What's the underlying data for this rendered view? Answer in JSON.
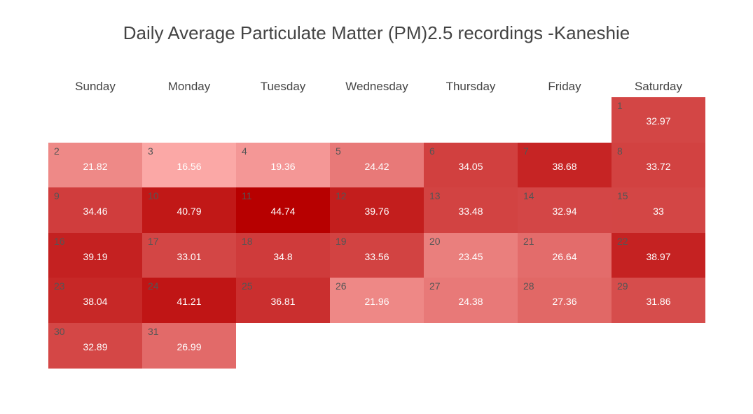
{
  "chart_data": {
    "type": "heatmap",
    "title": "Daily Average Particulate Matter (PM)2.5 recordings -Kaneshie",
    "weekdays": [
      "Sunday",
      "Monday",
      "Tuesday",
      "Wednesday",
      "Thursday",
      "Friday",
      "Saturday"
    ],
    "first_weekday_index": 6,
    "colorscale": {
      "low": "#fba8a6",
      "high": "#b70000",
      "min": 16.56,
      "max": 44.74
    },
    "days": [
      {
        "day": 1,
        "value": 32.97
      },
      {
        "day": 2,
        "value": 21.82
      },
      {
        "day": 3,
        "value": 16.56
      },
      {
        "day": 4,
        "value": 19.36
      },
      {
        "day": 5,
        "value": 24.42
      },
      {
        "day": 6,
        "value": 34.05
      },
      {
        "day": 7,
        "value": 38.68
      },
      {
        "day": 8,
        "value": 33.72
      },
      {
        "day": 9,
        "value": 34.46
      },
      {
        "day": 10,
        "value": 40.79
      },
      {
        "day": 11,
        "value": 44.74
      },
      {
        "day": 12,
        "value": 39.76
      },
      {
        "day": 13,
        "value": 33.48
      },
      {
        "day": 14,
        "value": 32.94
      },
      {
        "day": 15,
        "value": 33
      },
      {
        "day": 16,
        "value": 39.19
      },
      {
        "day": 17,
        "value": 33.01
      },
      {
        "day": 18,
        "value": 34.8
      },
      {
        "day": 19,
        "value": 33.56
      },
      {
        "day": 20,
        "value": 23.45
      },
      {
        "day": 21,
        "value": 26.64
      },
      {
        "day": 22,
        "value": 38.97
      },
      {
        "day": 23,
        "value": 38.04
      },
      {
        "day": 24,
        "value": 41.21
      },
      {
        "day": 25,
        "value": 36.81
      },
      {
        "day": 26,
        "value": 21.96
      },
      {
        "day": 27,
        "value": 24.38
      },
      {
        "day": 28,
        "value": 27.36
      },
      {
        "day": 29,
        "value": 31.86
      },
      {
        "day": 30,
        "value": 32.89
      },
      {
        "day": 31,
        "value": 26.99
      }
    ]
  }
}
